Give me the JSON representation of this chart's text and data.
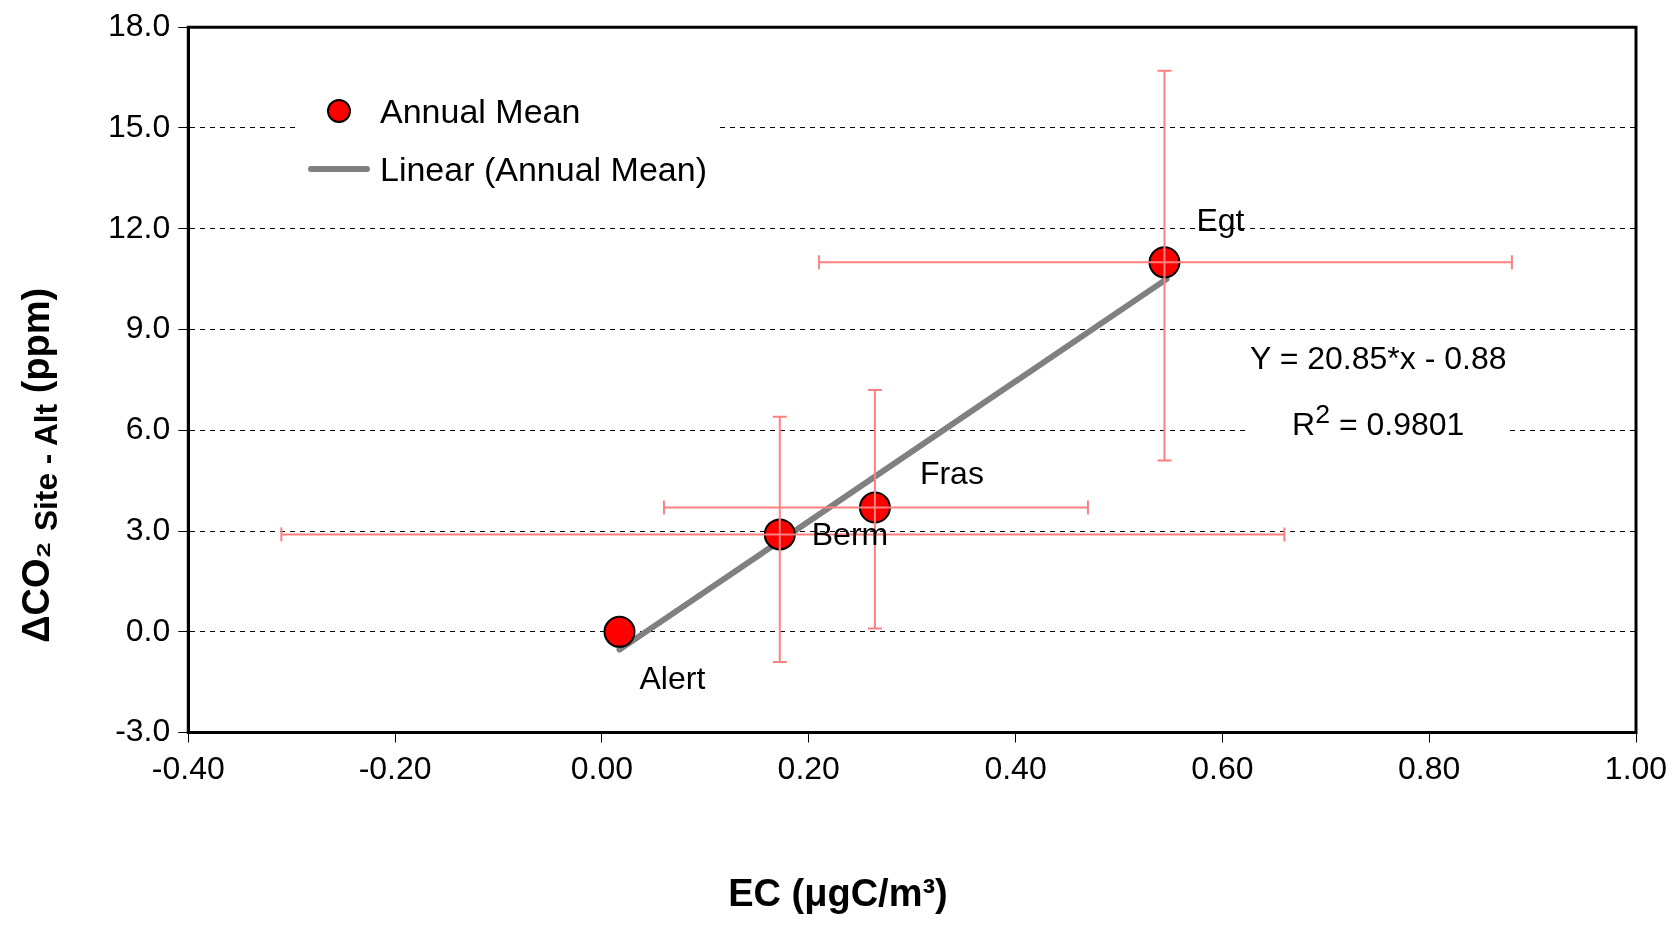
{
  "chart_data": {
    "type": "scatter",
    "xlabel": "EC (μgC/m³)",
    "ylabel": "ΔCO₂ $_{Site - Alt}$ (ppm)",
    "xlim": [
      -0.4,
      1.0
    ],
    "xticks": [
      {
        "value": -0.4,
        "label": "-0.40"
      },
      {
        "value": -0.2,
        "label": "-0.20"
      },
      {
        "value": 0,
        "label": "0.00"
      },
      {
        "value": 0.2,
        "label": "0.20"
      },
      {
        "value": 0.4,
        "label": "0.40"
      },
      {
        "value": 0.6,
        "label": "0.60"
      },
      {
        "value": 0.8,
        "label": "0.80"
      },
      {
        "value": 1.0,
        "label": "1.00"
      }
    ],
    "ylim": [
      -3,
      18
    ],
    "yticks": [
      {
        "value": -3,
        "label": "-3.0"
      },
      {
        "value": 0,
        "label": "0.0"
      },
      {
        "value": 3,
        "label": "3.0"
      },
      {
        "value": 6,
        "label": "6.0"
      },
      {
        "value": 9,
        "label": "9.0"
      },
      {
        "value": 12,
        "label": "12.0"
      },
      {
        "value": 15,
        "label": "15.0"
      },
      {
        "value": 18,
        "label": "18.0"
      }
    ],
    "grid": "y",
    "legend": "top left",
    "series": [
      {
        "name": "Annual Mean",
        "marker": "circle",
        "color": "#ff0000",
        "x": [
          0.017,
          0.172,
          0.264,
          0.544
        ],
        "values": [
          0.0,
          2.9,
          3.7,
          11.0
        ],
        "errors": [
          null,
          [
            -0.9,
            6.4
          ],
          [
            0.1,
            7.2
          ],
          [
            5.1,
            16.7
          ]
        ],
        "xerrors": [
          null,
          [
            -0.31,
            0.66
          ],
          [
            0.06,
            0.47
          ],
          [
            0.21,
            0.88
          ]
        ]
      },
      {
        "name": "Linear (Annual Mean)",
        "type": "line",
        "marker": "none",
        "color": "#808080",
        "x": [
          0.017,
          0.546
        ],
        "values": [
          -0.53,
          10.5
        ]
      }
    ],
    "annotations": [
      {
        "text": "Alert",
        "x": 0.017,
        "y": 0.0
      },
      {
        "text": "Berm",
        "x": 0.172,
        "y": 2.9
      },
      {
        "text": "Fras",
        "x": 0.264,
        "y": 3.7
      },
      {
        "text": "Egt",
        "x": 0.544,
        "y": 11.0
      },
      "Y = 20.85*x - 0.88",
      "R$^{2}$ = 0.9801"
    ]
  }
}
